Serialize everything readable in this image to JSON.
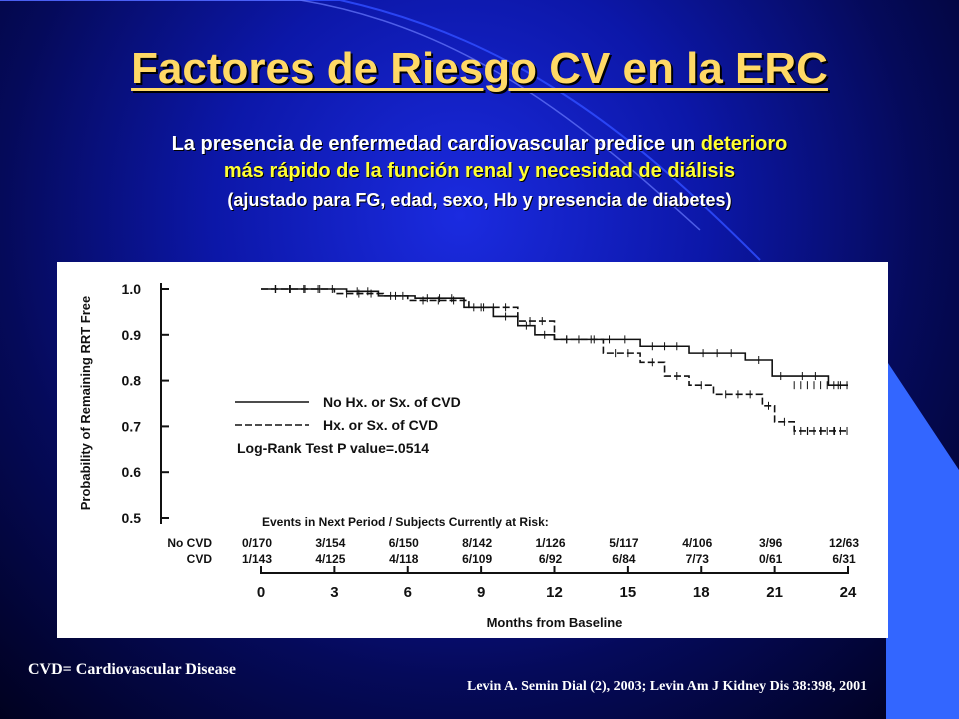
{
  "slide": {
    "title": "Factores de Riesgo CV en la ERC",
    "subtitle_part1": "La presencia de enfermedad cardiovascular predice un ",
    "subtitle_highlight1": "deterioro",
    "subtitle_highlight2": "más rápido de la función renal y necesidad de diálisis",
    "subtitle_note": "(ajustado para FG, edad, sexo, Hb y presencia de diabetes)",
    "footnote_left": "CVD= Cardiovascular Disease",
    "footnote_right": "Levin A. Semin Dial (2), 2003; Levin Am J Kidney Dis 38:398, 2001",
    "colors": {
      "title": "#ffd966",
      "highlight": "#ffff33",
      "background": "#0c17a8",
      "accent_panel": "#3366ff"
    }
  },
  "chart_data": {
    "type": "line",
    "xlabel": "Months from Baseline",
    "ylabel": "Probability of Remaining RRT Free",
    "x_ticks": [
      "0",
      "3",
      "6",
      "9",
      "12",
      "15",
      "18",
      "21",
      "24"
    ],
    "y_ticks": [
      "1.0",
      "0.9",
      "0.8",
      "0.7",
      "0.6",
      "0.5"
    ],
    "xlim": [
      0,
      24
    ],
    "ylim": [
      0.5,
      1.0
    ],
    "series": [
      {
        "name": "No Hx. or Sx. of CVD",
        "style": "solid",
        "x": [
          0,
          3.5,
          4.8,
          6.3,
          8.3,
          9.5,
          10.5,
          11.2,
          12,
          13,
          15.5,
          17.5,
          19.8,
          20.9,
          21.6,
          23.2,
          24
        ],
        "y": [
          1.0,
          0.995,
          0.985,
          0.98,
          0.96,
          0.94,
          0.92,
          0.9,
          0.89,
          0.89,
          0.875,
          0.86,
          0.845,
          0.81,
          0.81,
          0.79,
          0.79
        ]
      },
      {
        "name": "Hx. or Sx. of CVD",
        "style": "dashed",
        "x": [
          0,
          3,
          5,
          6,
          8.5,
          10.5,
          12,
          14,
          15.5,
          16.5,
          17.5,
          18.5,
          20.5,
          21.0,
          21.8,
          24
        ],
        "y": [
          1.0,
          0.99,
          0.985,
          0.975,
          0.96,
          0.93,
          0.89,
          0.86,
          0.84,
          0.81,
          0.79,
          0.77,
          0.745,
          0.71,
          0.69,
          0.69
        ]
      }
    ],
    "annotation": "Log-Rank Test P value=.0514",
    "risk_table": {
      "header": "Events in Next Period / Subjects Currently at Risk:",
      "rows": [
        {
          "label": "No CVD",
          "values": [
            "0/170",
            "3/154",
            "6/150",
            "8/142",
            "1/126",
            "5/117",
            "4/106",
            "3/96",
            "12/63"
          ]
        },
        {
          "label": "CVD",
          "values": [
            "1/143",
            "4/125",
            "4/118",
            "6/109",
            "6/92",
            "6/84",
            "7/73",
            "0/61",
            "6/31"
          ]
        }
      ]
    },
    "legend_position": "center-left"
  }
}
